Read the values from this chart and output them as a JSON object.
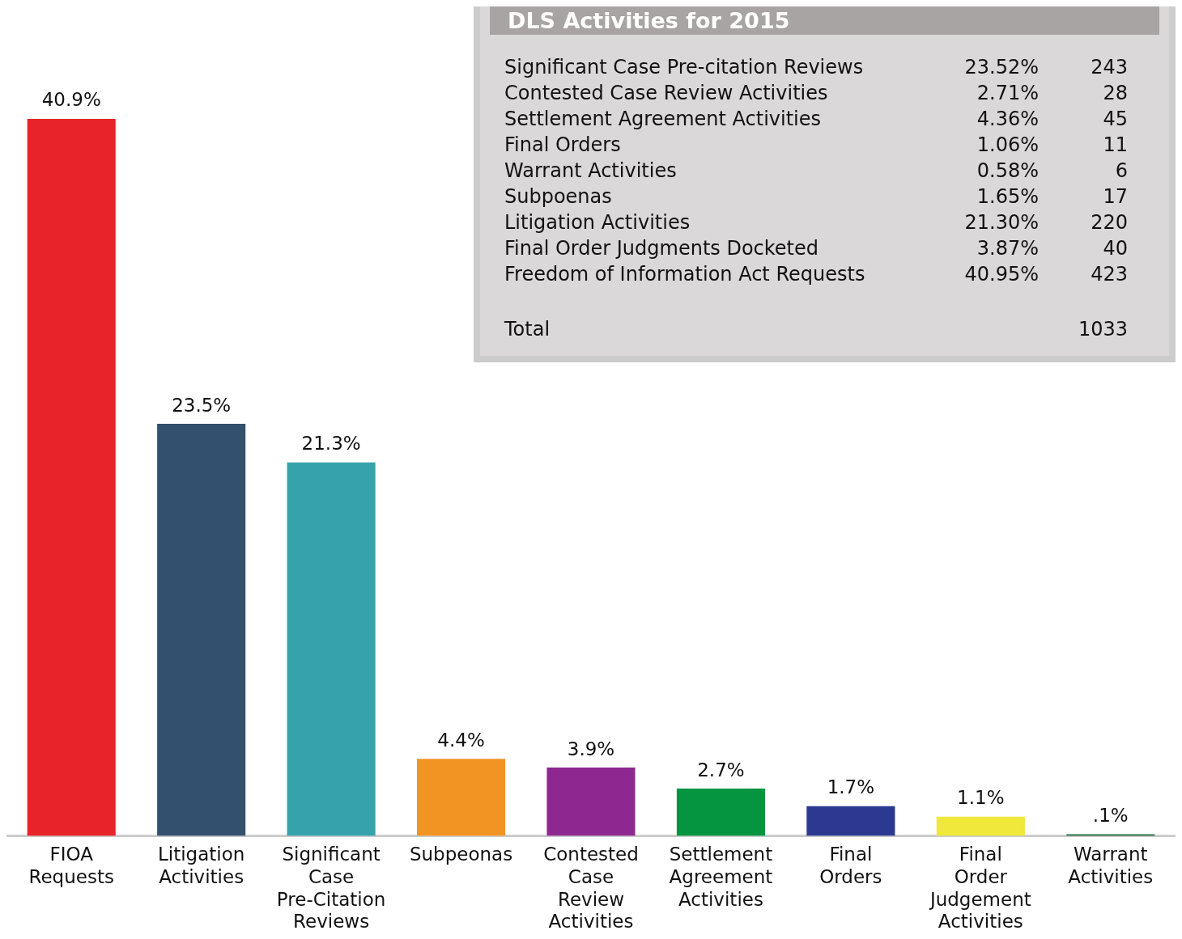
{
  "chart_data": [
    {
      "type": "bar",
      "categories": [
        "FIOA Requests",
        "Litigation Activities",
        "Significant Case Pre-Citation Reviews",
        "Subpeonas",
        "Contested Case Review Activities",
        "Settlement Agreement Activities",
        "Final Orders",
        "Final Order Judgement Activities",
        "Warrant Activities"
      ],
      "values": [
        40.9,
        23.5,
        21.3,
        4.4,
        3.9,
        2.7,
        1.7,
        1.1,
        0.1
      ],
      "value_labels": [
        "40.9%",
        "23.5%",
        "21.3%",
        "4.4%",
        "3.9%",
        "2.7%",
        "1.7%",
        "1.1%",
        ".1%"
      ],
      "colors": [
        "#e8232a",
        "#33506e",
        "#36a3ab",
        "#f29423",
        "#8e278f",
        "#05943f",
        "#2b3990",
        "#f0e83a",
        "#1a6b3a"
      ]
    },
    {
      "type": "other",
      "title": "DLS Activities for 2015",
      "categories": [
        "Significant Case Pre-citation Reviews",
        "Contested Case Review Activities",
        "Settlement Agreement Activities",
        "Final Orders",
        "Warrant Activities",
        "Subpoenas",
        "Litigation Activities",
        "Final Order Judgments Docketed",
        "Freedom of Information Act Requests",
        "Total"
      ],
      "series": [
        {
          "color": "#dad8d9",
          "values": [
            23.52,
            2.71,
            4.36,
            1.06,
            0.58,
            1.65,
            21.3,
            3.87,
            40.95,
            null
          ],
          "value_labels": [
            "23.52%",
            "2.71%",
            "4.36%",
            "1.06%",
            "0.58%",
            "1.65%",
            "21.30%",
            "3.87%",
            "40.95%",
            null
          ]
        },
        {
          "color": "#dad8d9",
          "values": [
            243,
            28,
            45,
            11,
            6,
            17,
            220,
            40,
            423,
            1033
          ],
          "value_labels": [
            "243",
            "28",
            "45",
            "11",
            "6",
            "17",
            "220",
            "40",
            "423",
            "1033"
          ]
        }
      ]
    }
  ]
}
